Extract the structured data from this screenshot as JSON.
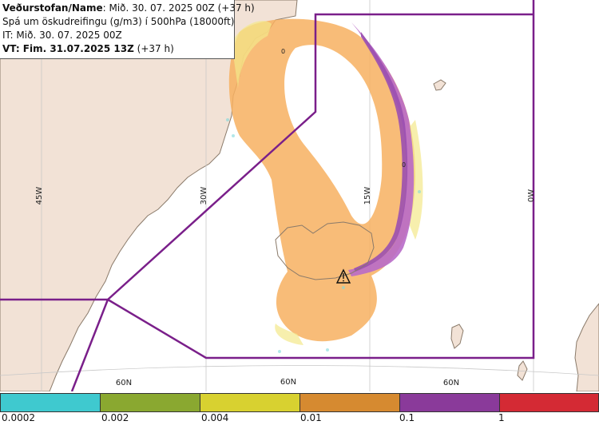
{
  "info": {
    "line1_bold": "Veðurstofan/Name",
    "line1_rest": ": Mið. 30. 07. 2025 00Z (+37 h)",
    "line2": "Spá um öskudreifingu (g/m3) í 500hPa (18000ft)",
    "line3": "IT: Mið. 30. 07. 2025 00Z",
    "line4_bold": "VT: Fim. 31.07.2025 13Z",
    "line4_rest": " (+37 h)"
  },
  "map": {
    "lon_labels": [
      "45W",
      "30W",
      "15W",
      "0W"
    ],
    "lat_labels": [
      "60N",
      "60N",
      "60N"
    ],
    "contour_labels": [
      "0",
      "0"
    ],
    "volcano_icon": "volcano-warning-triangle-icon",
    "colors": {
      "land": "#f2e2d6",
      "coast": "#8a7a6a",
      "boundary": "#7a1f8a",
      "grid": "#c8c8c8"
    }
  },
  "legend": {
    "labels": [
      "0.0002",
      "0.002",
      "0.004",
      "0.01",
      "0.1",
      "1"
    ],
    "colors": [
      "#3fc9cf",
      "#8aa830",
      "#d8d130",
      "#d68a30",
      "#8a3a9a",
      "#d42a34"
    ]
  }
}
